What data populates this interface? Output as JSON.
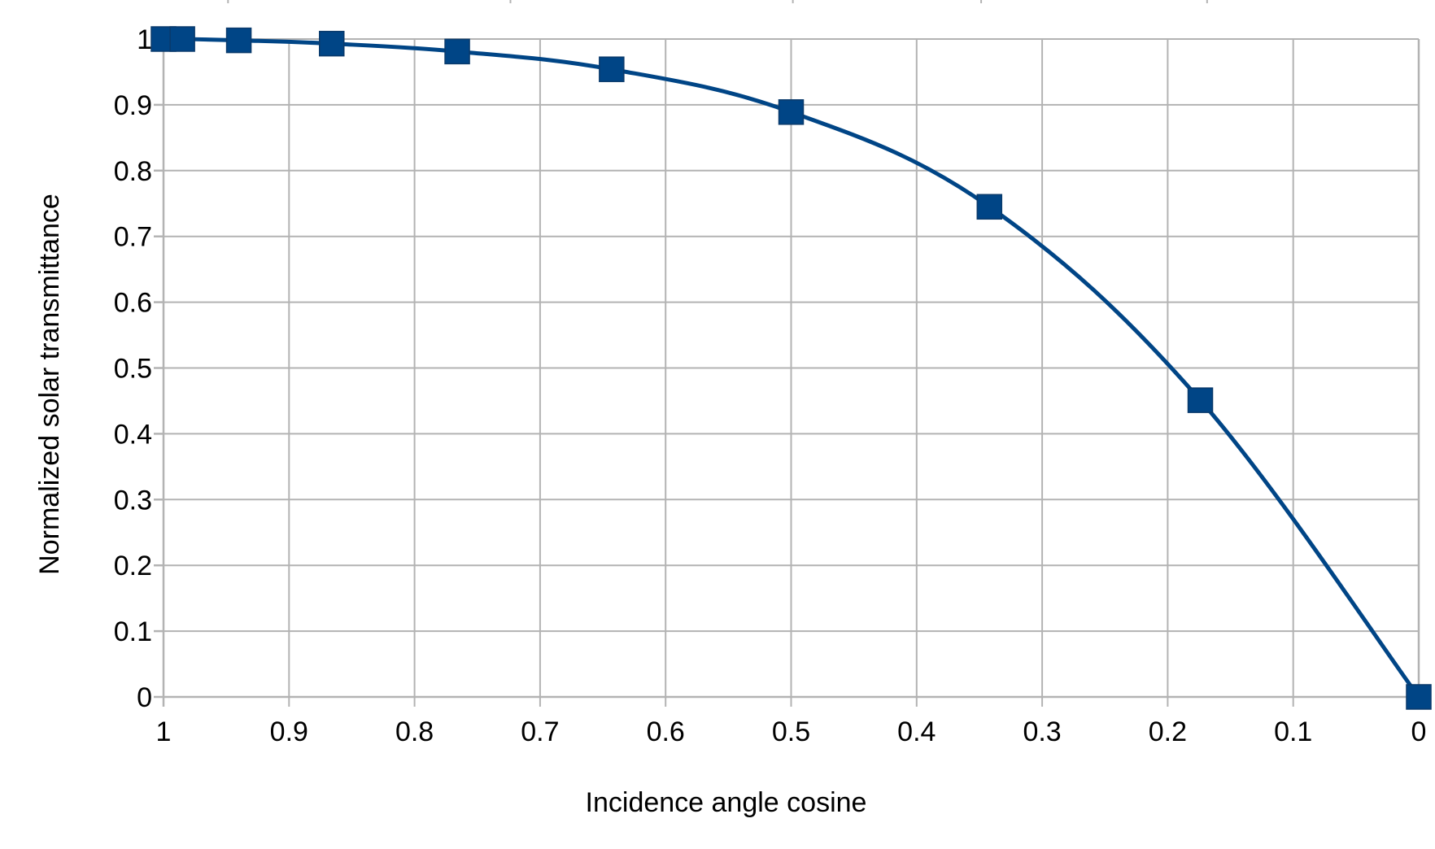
{
  "chart_data": {
    "type": "line",
    "title": "",
    "xlabel": "Incidence angle cosine",
    "ylabel": "Normalized solar transmittance",
    "x_reversed": true,
    "xlim": [
      0,
      1
    ],
    "ylim": [
      0,
      1
    ],
    "x_ticks": [
      "1",
      "0.9",
      "0.8",
      "0.7",
      "0.6",
      "0.5",
      "0.4",
      "0.3",
      "0.2",
      "0.1",
      "0"
    ],
    "y_ticks": [
      "0",
      "0.1",
      "0.2",
      "0.3",
      "0.4",
      "0.5",
      "0.6",
      "0.7",
      "0.8",
      "0.9",
      "1"
    ],
    "grid": true,
    "legend": "none",
    "series": [
      {
        "color": "#004586",
        "marker": "square",
        "smooth": true,
        "x": [
          1.0,
          0.985,
          0.94,
          0.866,
          0.766,
          0.643,
          0.5,
          0.342,
          0.174,
          0.0
        ],
        "y": [
          1.0,
          1.0,
          0.998,
          0.993,
          0.981,
          0.954,
          0.889,
          0.745,
          0.451,
          0.0
        ]
      }
    ]
  }
}
